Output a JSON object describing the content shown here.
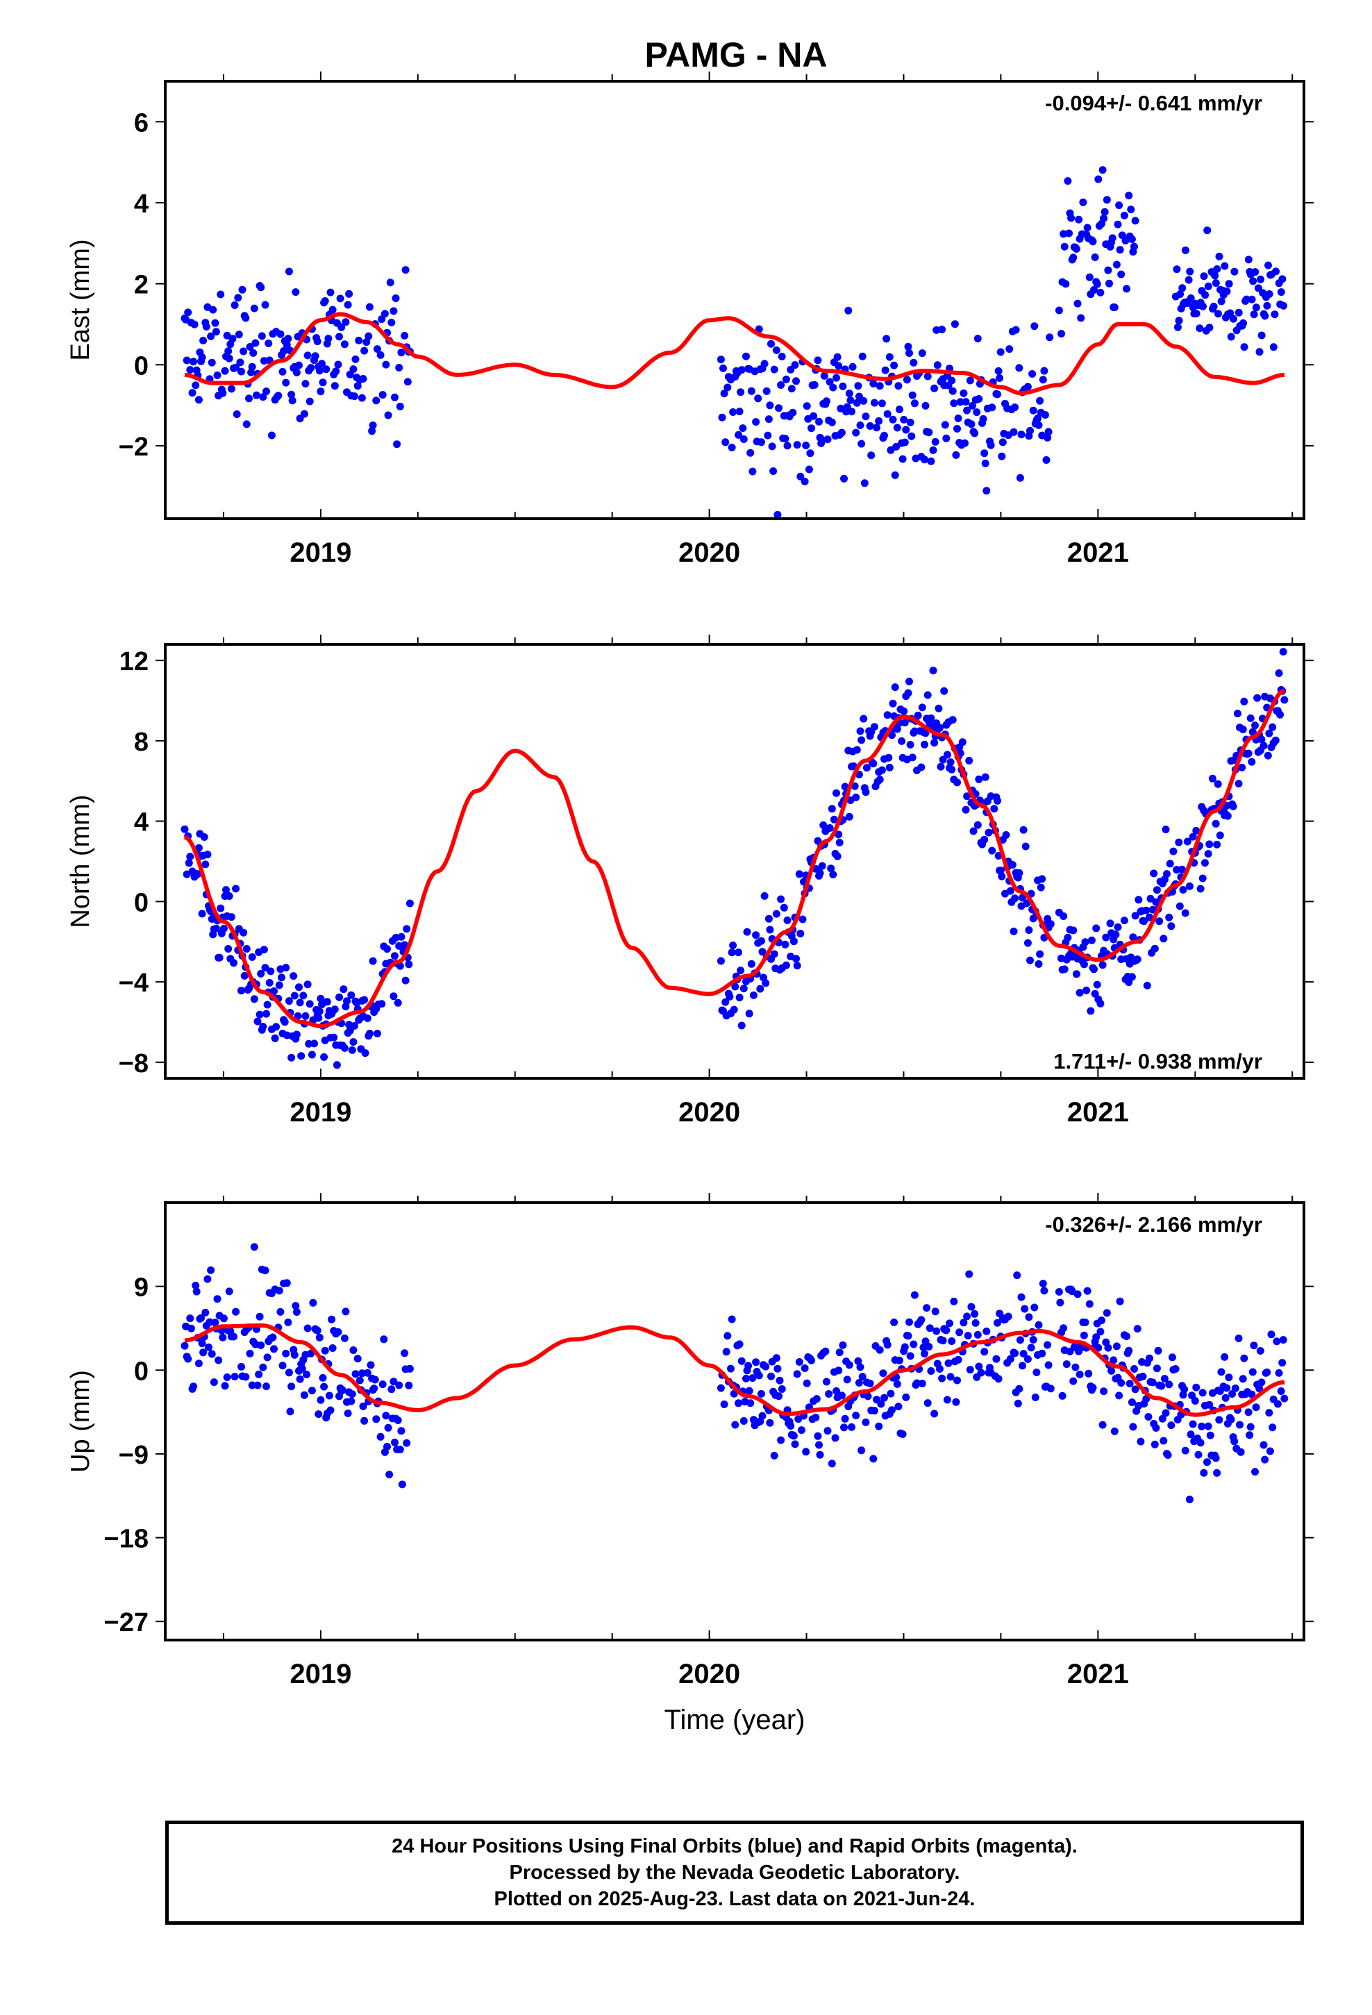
{
  "title": "PAMG - NA",
  "x_axis_title": "Time (year)",
  "caption": [
    "24 Hour Positions Using Final Orbits (blue) and Rapid Orbits (magenta).",
    "Processed by the Nevada Geodetic Laboratory.",
    "Plotted on 2025-Aug-23. Last data on 2021-Jun-24."
  ],
  "colors": {
    "data_points": "#0000ff",
    "model_curve": "#ff0000",
    "axes": "#000000"
  },
  "chart_data": [
    {
      "type": "scatter",
      "ylabel": "East (mm)",
      "rate_label": "-0.094+/- 0.641 mm/yr",
      "rate_position": "top-right",
      "xlim": [
        2018.6,
        2021.53
      ],
      "ylim": [
        -3.8,
        7.0
      ],
      "x_ticks": [
        2019,
        2020,
        2021
      ],
      "y_ticks": [
        -2,
        0,
        2,
        4,
        6
      ],
      "y_tick_labels": [
        "−2",
        "0",
        "2",
        "4",
        "6"
      ],
      "series": [
        {
          "x": [
            2018.65,
            2018.72,
            2018.8,
            2018.9,
            2019.0,
            2019.05,
            2019.12,
            2019.2,
            2019.25,
            2019.35,
            2019.5,
            2019.6,
            2019.75,
            2019.9,
            2020.0,
            2020.05,
            2020.15,
            2020.3,
            2020.45,
            2020.55,
            2020.65,
            2020.75,
            2020.8,
            2020.9,
            2021.0,
            2021.05,
            2021.12,
            2021.2,
            2021.3,
            2021.4,
            2021.48
          ],
          "y": [
            -0.25,
            -0.45,
            -0.45,
            0.1,
            1.1,
            1.25,
            1.05,
            0.5,
            0.2,
            -0.25,
            0.0,
            -0.25,
            -0.55,
            0.3,
            1.1,
            1.15,
            0.7,
            -0.15,
            -0.35,
            -0.15,
            -0.2,
            -0.55,
            -0.7,
            -0.5,
            0.5,
            1.0,
            1.0,
            0.45,
            -0.3,
            -0.45,
            -0.25
          ]
        }
      ],
      "clusters": [
        {
          "x_range": [
            2018.65,
            2019.23
          ],
          "y_base": 0.25,
          "y_spread": 0.85
        },
        {
          "x_range": [
            2020.03,
            2020.88
          ],
          "y_base": -1.05,
          "y_spread": 0.9
        },
        {
          "x_range": [
            2020.9,
            2021.1
          ],
          "y_base": 2.7,
          "y_spread": 0.9
        },
        {
          "x_range": [
            2021.2,
            2021.48
          ],
          "y_base": 1.6,
          "y_spread": 0.7
        }
      ]
    },
    {
      "type": "scatter",
      "ylabel": "North (mm)",
      "rate_label": "1.711+/- 0.938 mm/yr",
      "rate_position": "bottom-right",
      "xlim": [
        2018.6,
        2021.53
      ],
      "ylim": [
        -8.8,
        12.8
      ],
      "x_ticks": [
        2019,
        2020,
        2021
      ],
      "y_ticks": [
        -8,
        -4,
        0,
        4,
        8,
        12
      ],
      "y_tick_labels": [
        "−8",
        "−4",
        "0",
        "4",
        "8",
        "12"
      ],
      "series": [
        {
          "x": [
            2018.65,
            2018.75,
            2018.85,
            2018.95,
            2019.0,
            2019.1,
            2019.2,
            2019.3,
            2019.4,
            2019.5,
            2019.6,
            2019.7,
            2019.8,
            2019.9,
            2020.0,
            2020.1,
            2020.2,
            2020.3,
            2020.4,
            2020.5,
            2020.6,
            2020.7,
            2020.8,
            2020.9,
            2021.0,
            2021.1,
            2021.2,
            2021.3,
            2021.4,
            2021.48
          ],
          "y": [
            3.2,
            -1.0,
            -4.5,
            -6.0,
            -6.2,
            -5.5,
            -3.0,
            1.5,
            5.5,
            7.5,
            6.2,
            2.0,
            -2.3,
            -4.3,
            -4.6,
            -3.7,
            -1.5,
            3.0,
            7.0,
            9.2,
            8.3,
            4.8,
            0.5,
            -2.2,
            -2.9,
            -2.0,
            0.8,
            4.5,
            8.2,
            10.5
          ]
        }
      ],
      "clusters": [
        {
          "x_range": [
            2018.65,
            2019.23
          ],
          "follow_curve": true,
          "y_spread": 1.1
        },
        {
          "x_range": [
            2020.03,
            2020.88
          ],
          "follow_curve": true,
          "y_spread": 1.2
        },
        {
          "x_range": [
            2020.9,
            2021.48
          ],
          "follow_curve": true,
          "y_spread": 1.1
        }
      ]
    },
    {
      "type": "scatter",
      "ylabel": "Up (mm)",
      "rate_label": "-0.326+/- 2.166 mm/yr",
      "rate_position": "top-right",
      "xlim": [
        2018.6,
        2021.53
      ],
      "ylim": [
        -29.0,
        18.0
      ],
      "x_ticks": [
        2019,
        2020,
        2021
      ],
      "y_ticks": [
        -27,
        -18,
        -9,
        0,
        9
      ],
      "y_tick_labels": [
        "−27",
        "−18",
        "−9",
        "0",
        "9"
      ],
      "series": [
        {
          "x": [
            2018.65,
            2018.75,
            2018.85,
            2018.95,
            2019.05,
            2019.15,
            2019.25,
            2019.35,
            2019.5,
            2019.65,
            2019.8,
            2019.9,
            2020.0,
            2020.1,
            2020.2,
            2020.3,
            2020.4,
            2020.5,
            2020.6,
            2020.7,
            2020.8,
            2020.85,
            2020.95,
            2021.05,
            2021.15,
            2021.25,
            2021.35,
            2021.48
          ],
          "y": [
            3.2,
            4.7,
            4.8,
            3.0,
            -0.5,
            -3.5,
            -4.3,
            -3.0,
            0.5,
            3.3,
            4.6,
            3.5,
            0.5,
            -2.8,
            -4.7,
            -4.2,
            -2.3,
            0.0,
            1.7,
            3.0,
            4.0,
            4.2,
            3.0,
            0.4,
            -3.0,
            -4.8,
            -4.0,
            -1.3
          ]
        }
      ],
      "clusters": [
        {
          "x_range": [
            2018.65,
            2019.23
          ],
          "follow_curve": true,
          "y_spread": 3.5
        },
        {
          "x_range": [
            2020.03,
            2020.88
          ],
          "follow_curve": true,
          "y_spread": 3.5
        },
        {
          "x_range": [
            2020.9,
            2021.48
          ],
          "follow_curve": true,
          "y_spread": 3.5
        }
      ]
    }
  ]
}
